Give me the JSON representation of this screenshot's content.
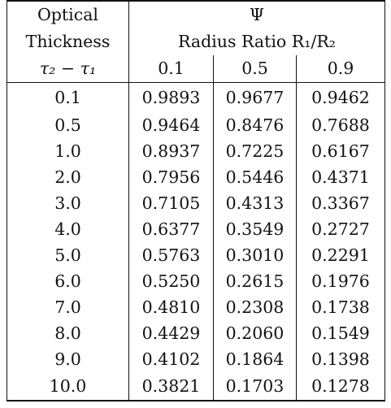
{
  "header": {
    "row1_col1": "Optical",
    "row1_psi": "Ψ",
    "row2_col1": "Thickness",
    "row2_radius_ratio": "Radius Ratio R₁/R₂",
    "row3_col1": "τ₂ − τ₁",
    "ratios": [
      "0.1",
      "0.5",
      "0.9"
    ]
  },
  "rows": [
    {
      "thickness": "0.1",
      "v1": "0.9893",
      "v2": "0.9677",
      "v3": "0.9462"
    },
    {
      "thickness": "0.5",
      "v1": "0.9464",
      "v2": "0.8476",
      "v3": "0.7688"
    },
    {
      "thickness": "1.0",
      "v1": "0.8937",
      "v2": "0.7225",
      "v3": "0.6167"
    },
    {
      "thickness": "2.0",
      "v1": "0.7956",
      "v2": "0.5446",
      "v3": "0.4371"
    },
    {
      "thickness": "3.0",
      "v1": "0.7105",
      "v2": "0.4313",
      "v3": "0.3367"
    },
    {
      "thickness": "4.0",
      "v1": "0.6377",
      "v2": "0.3549",
      "v3": "0.2727"
    },
    {
      "thickness": "5.0",
      "v1": "0.5763",
      "v2": "0.3010",
      "v3": "0.2291"
    },
    {
      "thickness": "6.0",
      "v1": "0.5250",
      "v2": "0.2615",
      "v3": "0.1976"
    },
    {
      "thickness": "7.0",
      "v1": "0.4810",
      "v2": "0.2308",
      "v3": "0.1738"
    },
    {
      "thickness": "8.0",
      "v1": "0.4429",
      "v2": "0.2060",
      "v3": "0.1549"
    },
    {
      "thickness": "9.0",
      "v1": "0.4102",
      "v2": "0.1864",
      "v3": "0.1398"
    },
    {
      "thickness": "10.0",
      "v1": "0.3821",
      "v2": "0.1703",
      "v3": "0.1278"
    }
  ]
}
